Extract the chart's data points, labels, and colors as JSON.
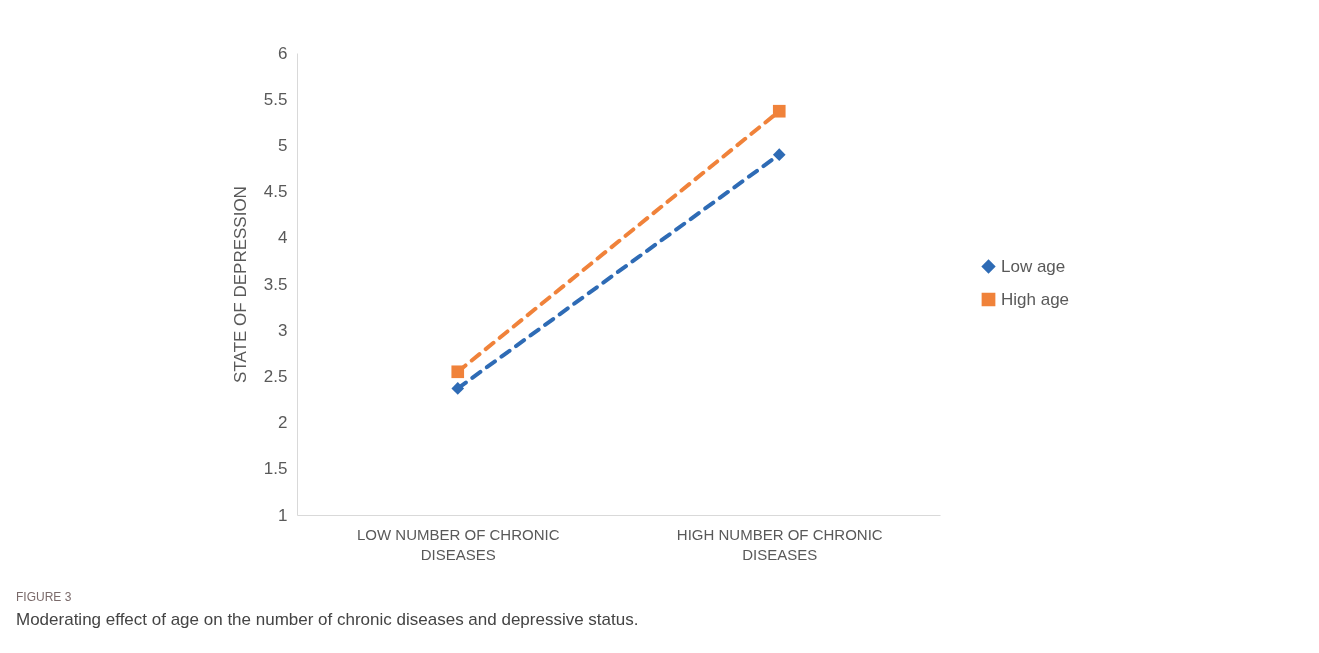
{
  "chart_data": {
    "type": "line",
    "ylabel": "STATE OF DEPRESSION",
    "categories": [
      "LOW NUMBER OF CHRONIC DISEASES",
      "HIGH NUMBER OF CHRONIC DISEASES"
    ],
    "series": [
      {
        "name": "Low age",
        "color": "#2e6bb5",
        "values": [
          2.37,
          4.9
        ],
        "marker": "diamond",
        "line_style": "dashed"
      },
      {
        "name": "High age",
        "color": "#f0823a",
        "values": [
          2.55,
          5.37
        ],
        "marker": "square",
        "line_style": "dashed"
      }
    ],
    "ylim": [
      1,
      6
    ],
    "yticks": [
      1,
      1.5,
      2,
      2.5,
      3,
      3.5,
      4,
      4.5,
      5,
      5.5,
      6
    ],
    "grid": false,
    "legend": "right",
    "annotations": [
      "FIGURE 3",
      "Moderating effect of age on the number of chronic diseases and depressive status."
    ]
  }
}
